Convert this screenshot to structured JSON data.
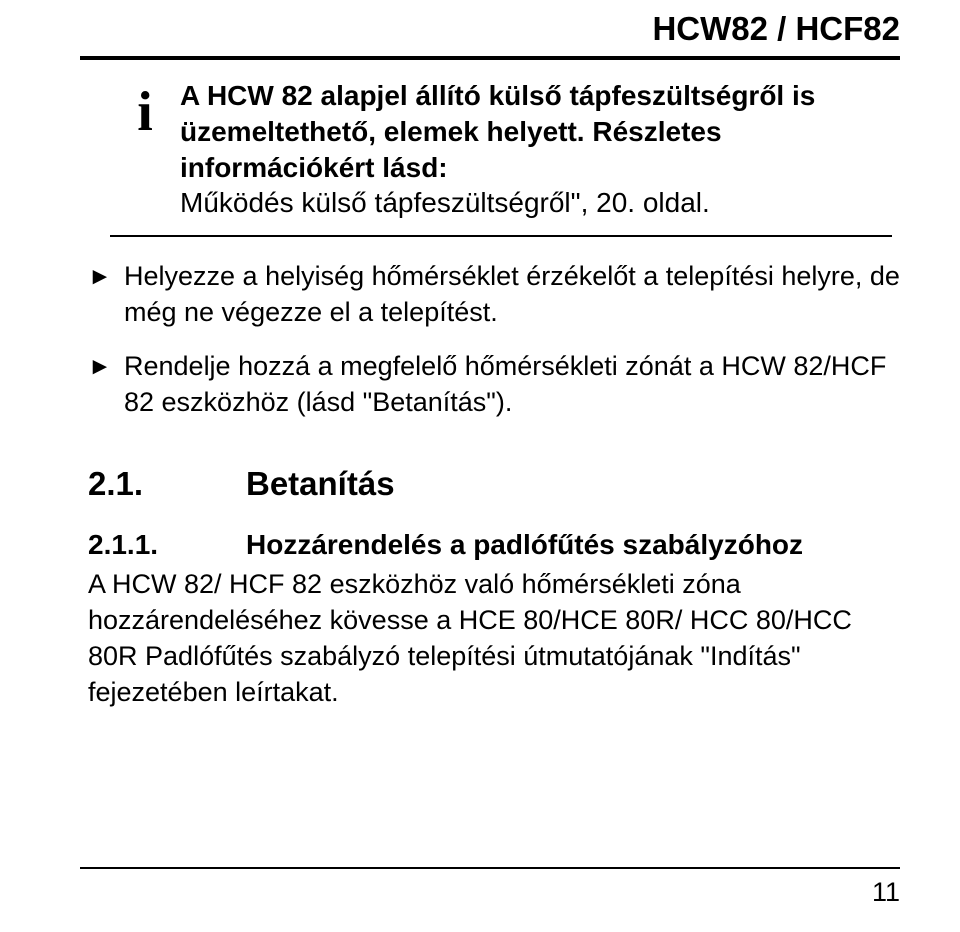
{
  "colors": {
    "text": "#000000",
    "background": "#ffffff",
    "rule": "#000000"
  },
  "typography": {
    "body_fontsize_pt": 20,
    "heading_fontsize_pt": 25,
    "subheading_fontsize_pt": 21,
    "header_fontsize_pt": 25,
    "info_fontsize_pt": 21,
    "font_family": "Arial"
  },
  "header": {
    "title": "HCW82 / HCF82"
  },
  "info_box": {
    "icon_glyph": "i",
    "icon_name": "info-icon",
    "line1": "A HCW 82 alapjel állító külső tápfeszültségről is üzemeltethető, elemek helyett. Részletes információkért lásd:",
    "line2": "Működés külső tápfeszültségről\", 20. oldal."
  },
  "bullets": {
    "marker": "►",
    "items": [
      "Helyezze a helyiség hőmérséklet érzékelőt a telepítési helyre, de még ne végezze el a telepítést.",
      "Rendelje hozzá a megfelelő hőmérsékleti zónát a HCW 82/HCF 82 eszközhöz (lásd \"Betanítás\")."
    ]
  },
  "section": {
    "number": "2.1.",
    "title": "Betanítás"
  },
  "subsection": {
    "number": "2.1.1.",
    "title": "Hozzárendelés a padlófűtés szabályzóhoz"
  },
  "body": {
    "paragraph": "A HCW 82/ HCF 82 eszközhöz való hőmérsékleti zóna hozzárendeléséhez kövesse a HCE 80/HCE 80R/ HCC 80/HCC 80R Padlófűtés szabályzó telepítési útmutatójának \"Indítás\" fejezetében leírtakat."
  },
  "footer": {
    "page_number": "11"
  }
}
